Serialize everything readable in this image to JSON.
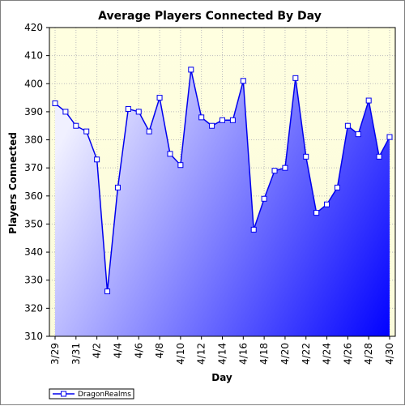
{
  "chart_data": {
    "type": "area",
    "title": "Average Players Connected By Day",
    "xlabel": "Day",
    "ylabel": "Players Connected",
    "ylim": [
      310,
      420
    ],
    "ytick_step": 10,
    "grid": true,
    "legend_position": "bottom-left",
    "x": [
      "3/29",
      "3/30",
      "3/31",
      "4/1",
      "4/2",
      "4/3",
      "4/4",
      "4/5",
      "4/6",
      "4/7",
      "4/8",
      "4/9",
      "4/10",
      "4/11",
      "4/12",
      "4/13",
      "4/14",
      "4/15",
      "4/16",
      "4/17",
      "4/18",
      "4/19",
      "4/20",
      "4/21",
      "4/22",
      "4/23",
      "4/24",
      "4/25",
      "4/26",
      "4/27",
      "4/28",
      "4/29",
      "4/30"
    ],
    "x_tick_labels": [
      "3/29",
      "3/31",
      "4/2",
      "4/4",
      "4/6",
      "4/8",
      "4/10",
      "4/12",
      "4/14",
      "4/16",
      "4/18",
      "4/20",
      "4/22",
      "4/24",
      "4/26",
      "4/28",
      "4/30"
    ],
    "series": [
      {
        "name": "DragonRealms",
        "values": [
          393,
          390,
          385,
          383,
          373,
          326,
          363,
          391,
          390,
          383,
          395,
          375,
          371,
          405,
          388,
          385,
          387,
          387,
          401,
          348,
          359,
          369,
          370,
          402,
          374,
          354,
          357,
          363,
          385,
          382,
          394,
          374,
          381
        ]
      }
    ],
    "colors": {
      "plot_background_top": "#ffffe0",
      "plot_background_bottom": "#fbfbdc",
      "fill_start": "#f0f0ff",
      "fill_end": "#0000ff",
      "line": "#0000ee",
      "marker_fill": "#ffffff",
      "grid": "#bcbcbc"
    }
  }
}
